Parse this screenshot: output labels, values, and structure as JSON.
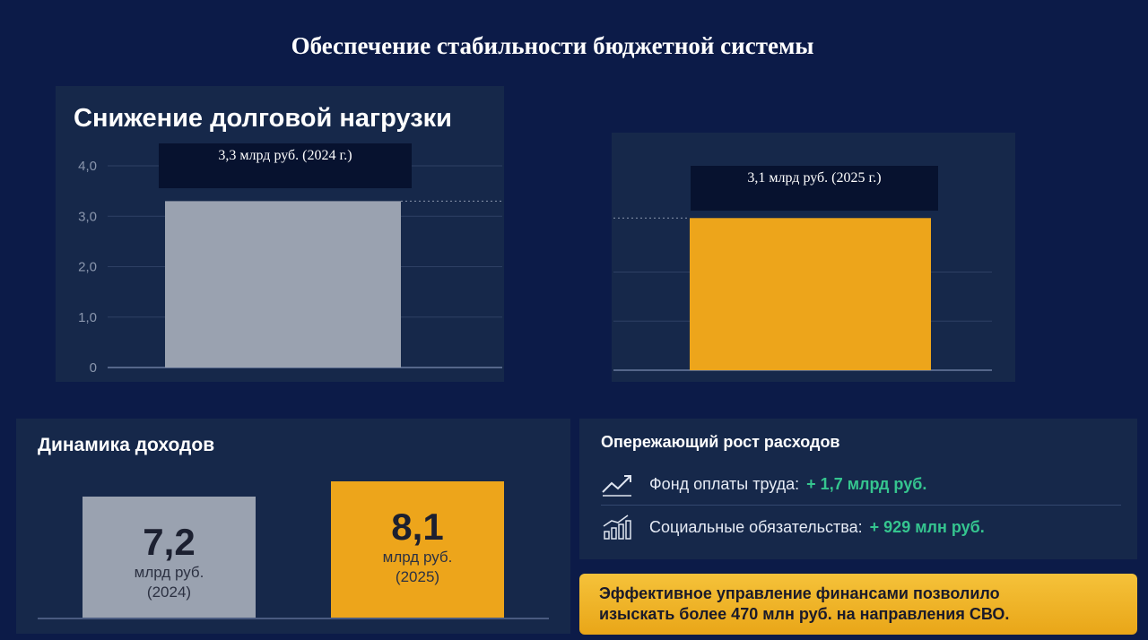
{
  "page_title": "Обеспечение стабильности бюджетной системы",
  "debt": {
    "title": "Снижение долговой нагрузки",
    "callout_2024": "3,3 млрд руб. (2024 г.)",
    "callout_2025": "3,1 млрд руб. (2025 г.)",
    "y_ticks": [
      "0",
      "1,0",
      "2,0",
      "3,0",
      "4,0"
    ]
  },
  "revenue": {
    "title": "Динамика доходов",
    "bars": [
      {
        "value": "7,2",
        "unit": "млрд руб.",
        "year": "(2024)"
      },
      {
        "value": "8,1",
        "unit": "млрд руб.",
        "year": "(2025)"
      }
    ]
  },
  "expenses": {
    "title": "Опережающий рост расходов",
    "items": [
      {
        "icon": "trend-up-icon",
        "label": "Фонд оплаты труда:",
        "value": "+ 1,7 млрд руб."
      },
      {
        "icon": "bar-growth-icon",
        "label": "Социальные обязательства:",
        "value": "+ 929 млн руб."
      }
    ]
  },
  "banner": {
    "line1": "Эффективное управление финансами позволило",
    "line2": "изыскать более 470 млн руб. на направления СВО."
  },
  "colors": {
    "background": "#0c1b48",
    "panel": "#16284a",
    "bar_2024": "#9aa2b0",
    "bar_2025": "#eda51b",
    "accent_green": "#35c58f",
    "banner": "#f2b52b"
  },
  "chart_data": [
    {
      "type": "bar",
      "title": "Снижение долговой нагрузки",
      "categories": [
        "2024",
        "2025"
      ],
      "values": [
        3.3,
        3.1
      ],
      "annotations": [
        "3,3 млрд руб. (2024 г.)",
        "3,1 млрд руб. (2025 г.)"
      ],
      "ylim": [
        0,
        4
      ],
      "yticks": [
        0,
        1,
        2,
        3,
        4
      ],
      "grid": true
    },
    {
      "type": "bar",
      "title": "Динамика доходов",
      "categories": [
        "2024",
        "2025"
      ],
      "values": [
        7.2,
        8.1
      ],
      "data_labels": [
        "7,2 млрд руб. (2024)",
        "8,1 млрд руб. (2025)"
      ],
      "grid": false
    }
  ]
}
